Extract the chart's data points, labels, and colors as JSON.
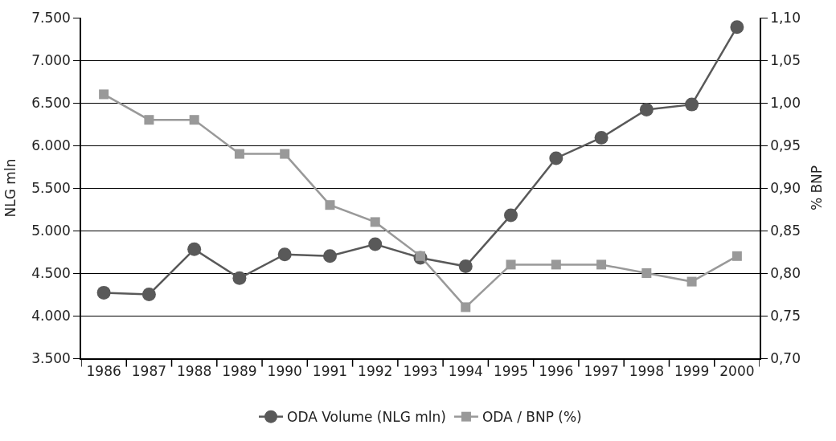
{
  "chart_data": {
    "type": "line",
    "ylabel": "NLG mln",
    "y2label": "% BNP",
    "categories": [
      "1986",
      "1987",
      "1988",
      "1989",
      "1990",
      "1991",
      "1992",
      "1993",
      "1994",
      "1995",
      "1996",
      "1997",
      "1998",
      "1999",
      "2000"
    ],
    "series": [
      {
        "name": "ODA Volume (NLG mln)",
        "color": "#595959",
        "marker": "circle",
        "values": [
          4270,
          4250,
          4780,
          4440,
          4720,
          4700,
          4840,
          4680,
          4580,
          5180,
          5850,
          6090,
          6420,
          6480,
          7390
        ]
      },
      {
        "name": "ODA / BNP (%)",
        "color": "#999999",
        "marker": "square",
        "axis": "y2",
        "values": [
          1.01,
          0.98,
          0.98,
          0.94,
          0.94,
          0.88,
          0.86,
          0.82,
          0.76,
          0.81,
          0.81,
          0.81,
          0.8,
          0.79,
          0.82
        ]
      }
    ],
    "ylim": [
      3500,
      7500
    ],
    "yticks": [
      {
        "value": 3500,
        "label": "3.500"
      },
      {
        "value": 4000,
        "label": "4.000"
      },
      {
        "value": 4500,
        "label": "4.500"
      },
      {
        "value": 5000,
        "label": "5.000"
      },
      {
        "value": 5500,
        "label": "5.500"
      },
      {
        "value": 6000,
        "label": "6.000"
      },
      {
        "value": 6500,
        "label": "6.500"
      },
      {
        "value": 7000,
        "label": "7.000"
      },
      {
        "value": 7500,
        "label": "7.500"
      }
    ],
    "y2lim": [
      0.7,
      1.1
    ],
    "y2ticks": [
      {
        "value": 0.7,
        "label": "0,70"
      },
      {
        "value": 0.75,
        "label": "0,75"
      },
      {
        "value": 0.8,
        "label": "0,80"
      },
      {
        "value": 0.85,
        "label": "0,85"
      },
      {
        "value": 0.9,
        "label": "0,90"
      },
      {
        "value": 0.95,
        "label": "0,95"
      },
      {
        "value": 1.0,
        "label": "1,00"
      },
      {
        "value": 1.05,
        "label": "1,05"
      },
      {
        "value": 1.1,
        "label": "1,10"
      }
    ],
    "grid": "y",
    "legend": "bottom",
    "line_style": "solid"
  }
}
